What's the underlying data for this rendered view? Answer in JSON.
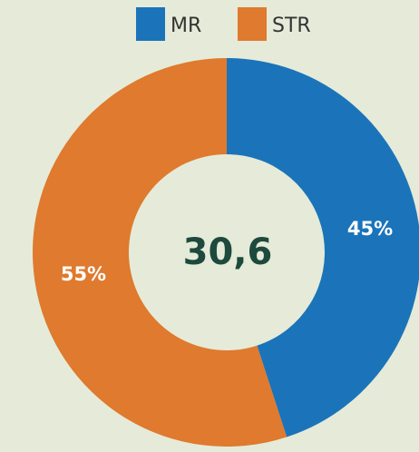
{
  "chart_data": {
    "type": "donut",
    "center_label": "30,6",
    "series": [
      {
        "name": "MR",
        "color": "#1b74ba",
        "values": [
          45
        ],
        "value_labels": [
          "45%"
        ]
      },
      {
        "name": "STR",
        "color": "#df7a2e",
        "values": [
          55
        ],
        "value_labels": [
          "55%"
        ]
      }
    ],
    "legend": "top"
  }
}
